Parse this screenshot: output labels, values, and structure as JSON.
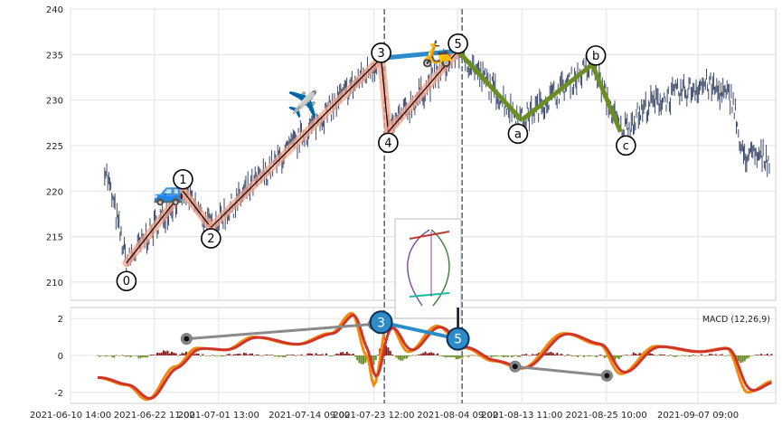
{
  "chart_data": [
    {
      "type": "candlestick",
      "panel": "price",
      "ylim": [
        208,
        240
      ],
      "yticks": [
        210,
        215,
        220,
        225,
        230,
        235,
        240
      ],
      "grid": true,
      "x_date_range": [
        "2021-06-10 14:00",
        "2021-09-18 09:00"
      ],
      "x_tick_labels": [
        "2021-06-10 14:00",
        "2021-06-22 11:00",
        "2021-07-01 13:00",
        "2021-07-14 09:00",
        "2021-07-23 12:00",
        "2021-08-04 09:00",
        "2021-08-13 11:00",
        "2021-08-25 10:00",
        "2021-09-07 09:00"
      ],
      "wave_points": [
        {
          "label": "0",
          "x": "2021-06-18 12:00",
          "y": 212.1
        },
        {
          "label": "1",
          "x": "2021-06-26 12:00",
          "y": 220.0
        },
        {
          "label": "2",
          "x": "2021-06-30 11:00",
          "y": 216.0
        },
        {
          "label": "3",
          "x": "2021-07-24 13:00",
          "y": 234.6
        },
        {
          "label": "4",
          "x": "2021-07-25 13:00",
          "y": 226.5
        },
        {
          "label": "5",
          "x": "2021-08-04 10:00",
          "y": 235.4
        },
        {
          "label": "a",
          "x": "2021-08-13 10:00",
          "y": 227.8
        },
        {
          "label": "b",
          "x": "2021-08-23 10:00",
          "y": 233.9
        },
        {
          "label": "c",
          "x": "2021-08-27 10:00",
          "y": 226.5
        }
      ],
      "impulse_color": "#f4a28c",
      "link_color": "#2b8cc8",
      "correction_color": "#6b8e23",
      "vertical_markers": [
        "2021-07-25 00:00",
        "2021-08-05 00:00"
      ],
      "emojis": [
        {
          "name": "car-icon",
          "char": "🚙",
          "x": "2021-06-24 12:00",
          "y": 219.0
        },
        {
          "name": "airplane-icon",
          "char": "✈️",
          "x": "2021-07-13 12:00",
          "y": 228.6
        },
        {
          "name": "scooter-icon",
          "char": "🛵",
          "x": "2021-08-01 12:00",
          "y": 234.2
        }
      ]
    },
    {
      "type": "line",
      "panel": "macd",
      "title": "MACD (12,26,9)",
      "ylim": [
        -2.6,
        2.6
      ],
      "yticks": [
        -2,
        0,
        2
      ],
      "series": [
        {
          "key": "macd",
          "color": "#f28a0f"
        },
        {
          "key": "signal",
          "color": "#d1352a"
        }
      ],
      "histogram_colors": {
        "positive": "#8b1a1a",
        "negative": "#6b8e23"
      },
      "divergence_lines": [
        {
          "points": [
            {
              "x": "2021-06-27 00:00",
              "y": 0.9
            },
            {
              "x": "2021-07-23 12:00",
              "y": 1.7
            }
          ],
          "color": "#8a8a8a"
        },
        {
          "points": [
            {
              "x": "2021-08-12 12:00",
              "y": -0.6
            },
            {
              "x": "2021-08-25 12:00",
              "y": -1.1
            }
          ],
          "color": "#8a8a8a"
        }
      ],
      "macd_wave_badges": [
        {
          "label": "3",
          "x": "2021-07-24 13:00",
          "y": 1.8
        },
        {
          "label": "5",
          "x": "2021-08-04 10:00",
          "y": 0.9
        }
      ]
    }
  ]
}
